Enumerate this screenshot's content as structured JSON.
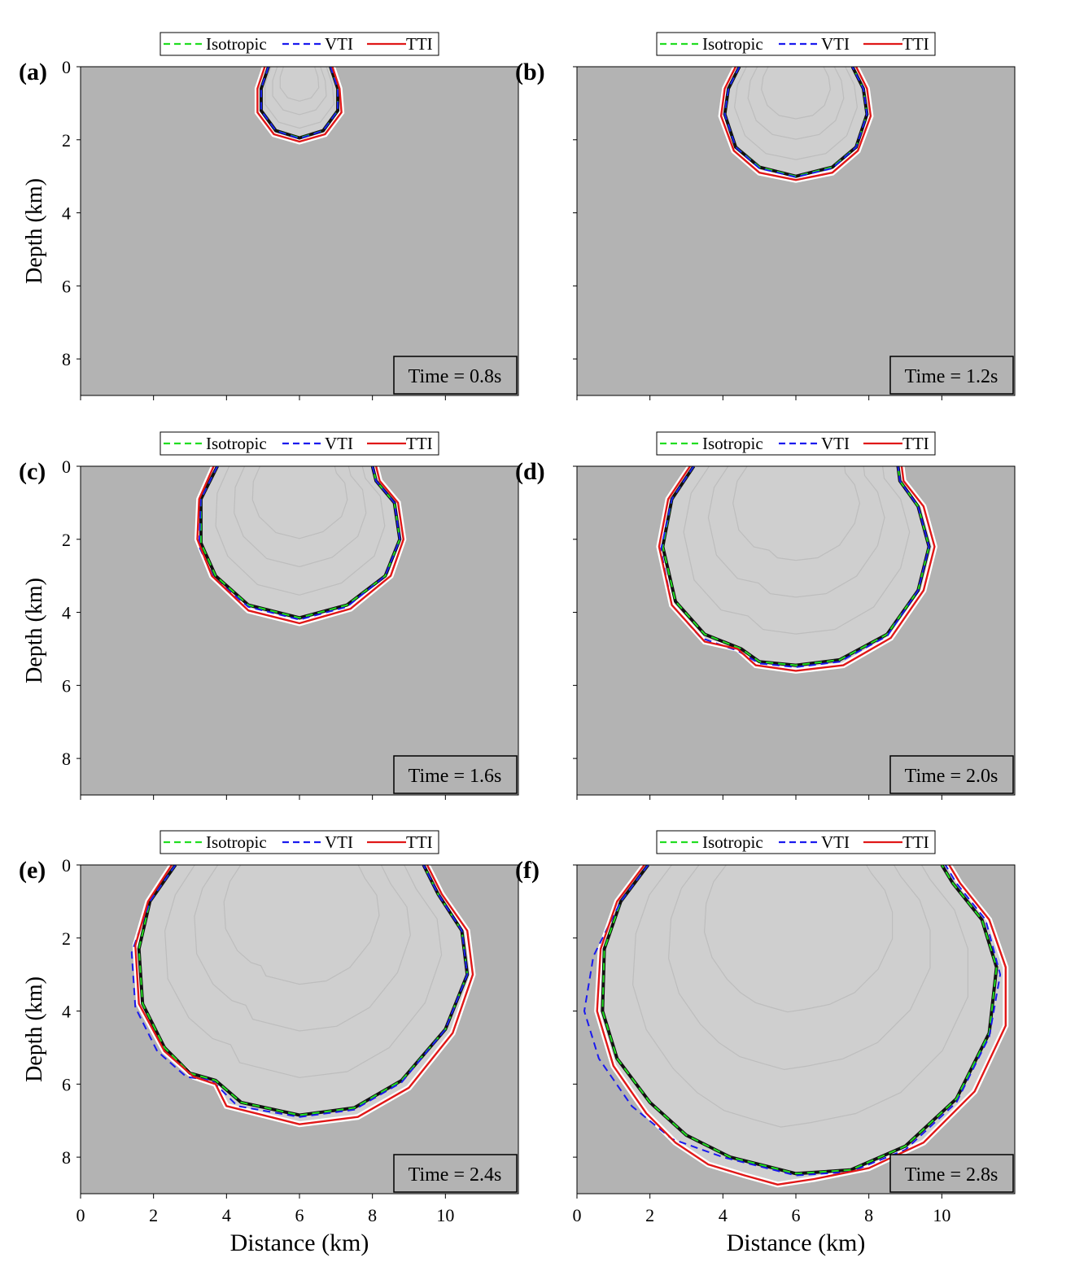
{
  "legend": {
    "items": [
      {
        "label": "Isotropic",
        "color": "#22dd22",
        "style": "dashed"
      },
      {
        "label": "VTI",
        "color": "#1a1aee",
        "style": "dashed"
      },
      {
        "label": "TTI",
        "color": "#e01818",
        "style": "solid"
      }
    ]
  },
  "axes": {
    "ylabel": "Depth (km)",
    "xlabel": "Distance (km)",
    "xticks": [
      "0",
      "2",
      "4",
      "6",
      "8",
      "10"
    ],
    "yticks": [
      "0",
      "2",
      "4",
      "6",
      "8"
    ]
  },
  "colors": {
    "background": "#b3b3b3",
    "isotropic": "#22dd22",
    "vti": "#1a1aee",
    "tti": "#e01818"
  },
  "chart_data": [
    {
      "type": "line",
      "panel": "(a)",
      "time_label": "Time = 0.8s",
      "xlim": [
        0,
        12
      ],
      "ylim": [
        0,
        9
      ],
      "source_x": 6,
      "series": [
        {
          "name": "Isotropic",
          "points": [
            [
              5.15,
              0
            ],
            [
              4.95,
              0.6
            ],
            [
              4.95,
              1.2
            ],
            [
              5.35,
              1.75
            ],
            [
              6,
              1.95
            ],
            [
              6.65,
              1.75
            ],
            [
              7.05,
              1.2
            ],
            [
              7.05,
              0.6
            ],
            [
              6.85,
              0
            ]
          ]
        },
        {
          "name": "VTI",
          "points": [
            [
              5.15,
              0
            ],
            [
              4.95,
              0.6
            ],
            [
              4.95,
              1.2
            ],
            [
              5.35,
              1.75
            ],
            [
              6,
              1.97
            ],
            [
              6.65,
              1.75
            ],
            [
              7.05,
              1.2
            ],
            [
              7.05,
              0.6
            ],
            [
              6.85,
              0
            ]
          ]
        },
        {
          "name": "TTI",
          "points": [
            [
              5.05,
              0
            ],
            [
              4.85,
              0.6
            ],
            [
              4.85,
              1.25
            ],
            [
              5.3,
              1.85
            ],
            [
              6,
              2.05
            ],
            [
              6.7,
              1.85
            ],
            [
              7.15,
              1.25
            ],
            [
              7.1,
              0.6
            ],
            [
              6.9,
              0
            ]
          ]
        }
      ]
    },
    {
      "type": "line",
      "panel": "(b)",
      "time_label": "Time = 1.2s",
      "xlim": [
        0,
        12
      ],
      "ylim": [
        0,
        9
      ],
      "source_x": 6,
      "series": [
        {
          "name": "Isotropic",
          "points": [
            [
              4.45,
              0
            ],
            [
              4.15,
              0.6
            ],
            [
              4.05,
              1.3
            ],
            [
              4.35,
              2.2
            ],
            [
              5,
              2.75
            ],
            [
              6,
              3.0
            ],
            [
              7,
              2.75
            ],
            [
              7.65,
              2.2
            ],
            [
              7.95,
              1.3
            ],
            [
              7.85,
              0.6
            ],
            [
              7.55,
              0
            ]
          ]
        },
        {
          "name": "VTI",
          "points": [
            [
              4.45,
              0
            ],
            [
              4.15,
              0.6
            ],
            [
              4.05,
              1.3
            ],
            [
              4.35,
              2.2
            ],
            [
              5,
              2.78
            ],
            [
              6,
              3.02
            ],
            [
              7,
              2.78
            ],
            [
              7.65,
              2.2
            ],
            [
              7.95,
              1.3
            ],
            [
              7.85,
              0.6
            ],
            [
              7.55,
              0
            ]
          ]
        },
        {
          "name": "TTI",
          "points": [
            [
              4.35,
              0
            ],
            [
              4.05,
              0.6
            ],
            [
              3.95,
              1.35
            ],
            [
              4.3,
              2.3
            ],
            [
              5,
              2.9
            ],
            [
              6,
              3.1
            ],
            [
              7,
              2.9
            ],
            [
              7.7,
              2.3
            ],
            [
              8.05,
              1.35
            ],
            [
              7.95,
              0.6
            ],
            [
              7.65,
              0
            ]
          ]
        }
      ]
    },
    {
      "type": "line",
      "panel": "(c)",
      "time_label": "Time = 1.6s",
      "xlim": [
        0,
        12
      ],
      "ylim": [
        0,
        9
      ],
      "source_x": 6,
      "series": [
        {
          "name": "Isotropic",
          "points": [
            [
              3.75,
              0
            ],
            [
              3.3,
              0.9
            ],
            [
              3.3,
              2.1
            ],
            [
              3.7,
              3.0
            ],
            [
              4.6,
              3.8
            ],
            [
              6,
              4.15
            ],
            [
              7.3,
              3.8
            ],
            [
              8.35,
              3.0
            ],
            [
              8.75,
              2.0
            ],
            [
              8.6,
              1.0
            ],
            [
              8.1,
              0.4
            ],
            [
              8.0,
              0
            ]
          ]
        },
        {
          "name": "VTI",
          "points": [
            [
              3.75,
              0
            ],
            [
              3.3,
              0.9
            ],
            [
              3.25,
              2.2
            ],
            [
              3.65,
              3.05
            ],
            [
              4.6,
              3.85
            ],
            [
              6,
              4.2
            ],
            [
              7.3,
              3.85
            ],
            [
              8.35,
              3.0
            ],
            [
              8.75,
              2.0
            ],
            [
              8.6,
              1.0
            ],
            [
              8.1,
              0.4
            ],
            [
              8.0,
              0
            ]
          ]
        },
        {
          "name": "TTI",
          "points": [
            [
              3.65,
              0
            ],
            [
              3.25,
              0.9
            ],
            [
              3.2,
              2.0
            ],
            [
              3.6,
              3.0
            ],
            [
              4.6,
              3.95
            ],
            [
              6,
              4.3
            ],
            [
              7.4,
              3.9
            ],
            [
              8.5,
              3.0
            ],
            [
              8.85,
              2.0
            ],
            [
              8.7,
              1.0
            ],
            [
              8.2,
              0.4
            ],
            [
              8.1,
              0
            ]
          ]
        }
      ]
    },
    {
      "type": "line",
      "panel": "(d)",
      "time_label": "Time = 2.0s",
      "xlim": [
        0,
        12
      ],
      "ylim": [
        0,
        9
      ],
      "source_x": 6,
      "series": [
        {
          "name": "Isotropic",
          "points": [
            [
              3.2,
              0
            ],
            [
              2.6,
              0.9
            ],
            [
              2.35,
              2.2
            ],
            [
              2.7,
              3.7
            ],
            [
              3.5,
              4.6
            ],
            [
              4.5,
              5.0
            ],
            [
              5,
              5.35
            ],
            [
              6,
              5.45
            ],
            [
              7.2,
              5.3
            ],
            [
              8.5,
              4.6
            ],
            [
              9.35,
              3.4
            ],
            [
              9.65,
              2.2
            ],
            [
              9.35,
              1.1
            ],
            [
              8.85,
              0.4
            ],
            [
              8.8,
              0
            ]
          ]
        },
        {
          "name": "VTI",
          "points": [
            [
              3.2,
              0
            ],
            [
              2.6,
              0.9
            ],
            [
              2.3,
              2.3
            ],
            [
              2.6,
              3.8
            ],
            [
              3.4,
              4.7
            ],
            [
              4.4,
              5.05
            ],
            [
              5,
              5.4
            ],
            [
              6,
              5.5
            ],
            [
              7.2,
              5.35
            ],
            [
              8.5,
              4.65
            ],
            [
              9.35,
              3.4
            ],
            [
              9.65,
              2.2
            ],
            [
              9.35,
              1.1
            ],
            [
              8.85,
              0.4
            ],
            [
              8.8,
              0
            ]
          ]
        },
        {
          "name": "TTI",
          "points": [
            [
              3.1,
              0
            ],
            [
              2.5,
              0.9
            ],
            [
              2.25,
              2.2
            ],
            [
              2.6,
              3.8
            ],
            [
              3.5,
              4.8
            ],
            [
              4.4,
              5.0
            ],
            [
              4.9,
              5.45
            ],
            [
              6,
              5.6
            ],
            [
              7.3,
              5.45
            ],
            [
              8.6,
              4.7
            ],
            [
              9.5,
              3.4
            ],
            [
              9.8,
              2.2
            ],
            [
              9.5,
              1.1
            ],
            [
              8.95,
              0.4
            ],
            [
              8.9,
              0
            ]
          ]
        }
      ]
    },
    {
      "type": "line",
      "panel": "(e)",
      "time_label": "Time = 2.4s",
      "xlim": [
        0,
        12
      ],
      "ylim": [
        0,
        9
      ],
      "source_x": 6,
      "series": [
        {
          "name": "Isotropic",
          "points": [
            [
              2.6,
              0
            ],
            [
              1.9,
              1.0
            ],
            [
              1.6,
              2.3
            ],
            [
              1.7,
              3.8
            ],
            [
              2.3,
              5.0
            ],
            [
              3.0,
              5.7
            ],
            [
              3.7,
              5.9
            ],
            [
              4.4,
              6.5
            ],
            [
              6,
              6.85
            ],
            [
              7.5,
              6.65
            ],
            [
              8.8,
              5.9
            ],
            [
              10.0,
              4.5
            ],
            [
              10.6,
              3.0
            ],
            [
              10.45,
              1.8
            ],
            [
              9.8,
              0.8
            ],
            [
              9.4,
              0
            ]
          ]
        },
        {
          "name": "VTI",
          "points": [
            [
              2.6,
              0
            ],
            [
              1.9,
              1.0
            ],
            [
              1.4,
              2.4
            ],
            [
              1.5,
              3.9
            ],
            [
              2.1,
              5.1
            ],
            [
              2.9,
              5.8
            ],
            [
              3.6,
              5.9
            ],
            [
              4.3,
              6.6
            ],
            [
              6,
              6.9
            ],
            [
              7.5,
              6.7
            ],
            [
              8.8,
              5.95
            ],
            [
              10.0,
              4.5
            ],
            [
              10.6,
              3.0
            ],
            [
              10.45,
              1.8
            ],
            [
              9.8,
              0.8
            ],
            [
              9.4,
              0
            ]
          ]
        },
        {
          "name": "TTI",
          "points": [
            [
              2.5,
              0
            ],
            [
              1.85,
              1.0
            ],
            [
              1.5,
              2.2
            ],
            [
              1.6,
              3.8
            ],
            [
              2.3,
              5.1
            ],
            [
              3.1,
              5.8
            ],
            [
              3.7,
              6.0
            ],
            [
              4.0,
              6.6
            ],
            [
              4.8,
              6.8
            ],
            [
              6,
              7.1
            ],
            [
              7.6,
              6.9
            ],
            [
              9.0,
              6.1
            ],
            [
              10.2,
              4.6
            ],
            [
              10.75,
              3.0
            ],
            [
              10.6,
              1.8
            ],
            [
              9.9,
              0.8
            ],
            [
              9.5,
              0
            ]
          ]
        }
      ]
    },
    {
      "type": "line",
      "panel": "(f)",
      "time_label": "Time = 2.8s",
      "xlim": [
        0,
        12
      ],
      "ylim": [
        0,
        9
      ],
      "source_x": 6,
      "series": [
        {
          "name": "Isotropic",
          "points": [
            [
              1.95,
              0
            ],
            [
              1.2,
              1.0
            ],
            [
              0.75,
              2.3
            ],
            [
              0.7,
              4.0
            ],
            [
              1.1,
              5.3
            ],
            [
              2.0,
              6.5
            ],
            [
              3.0,
              7.4
            ],
            [
              4.2,
              8.0
            ],
            [
              6,
              8.45
            ],
            [
              7.5,
              8.35
            ],
            [
              9.0,
              7.7
            ],
            [
              10.4,
              6.4
            ],
            [
              11.3,
              4.6
            ],
            [
              11.5,
              2.8
            ],
            [
              11.1,
              1.5
            ],
            [
              10.3,
              0.5
            ],
            [
              10.0,
              0
            ]
          ]
        },
        {
          "name": "VTI",
          "points": [
            [
              1.95,
              0
            ],
            [
              1.2,
              1.0
            ],
            [
              0.45,
              2.5
            ],
            [
              0.2,
              4.0
            ],
            [
              0.6,
              5.3
            ],
            [
              1.5,
              6.6
            ],
            [
              2.6,
              7.5
            ],
            [
              4.0,
              8.0
            ],
            [
              6,
              8.5
            ],
            [
              7.5,
              8.4
            ],
            [
              9.0,
              7.8
            ],
            [
              10.4,
              6.5
            ],
            [
              11.3,
              4.7
            ],
            [
              11.6,
              3.0
            ],
            [
              11.2,
              1.5
            ],
            [
              10.4,
              0.5
            ],
            [
              10.1,
              0
            ]
          ]
        },
        {
          "name": "TTI",
          "points": [
            [
              1.85,
              0
            ],
            [
              1.1,
              1.0
            ],
            [
              0.65,
              2.3
            ],
            [
              0.55,
              4.0
            ],
            [
              1.0,
              5.5
            ],
            [
              1.9,
              6.8
            ],
            [
              2.7,
              7.6
            ],
            [
              3.6,
              8.2
            ],
            [
              4.6,
              8.5
            ],
            [
              5.5,
              8.75
            ],
            [
              6.5,
              8.6
            ],
            [
              8.0,
              8.3
            ],
            [
              9.5,
              7.6
            ],
            [
              10.9,
              6.2
            ],
            [
              11.75,
              4.4
            ],
            [
              11.75,
              2.8
            ],
            [
              11.3,
              1.5
            ],
            [
              10.5,
              0.5
            ],
            [
              10.2,
              0
            ]
          ]
        }
      ]
    }
  ]
}
